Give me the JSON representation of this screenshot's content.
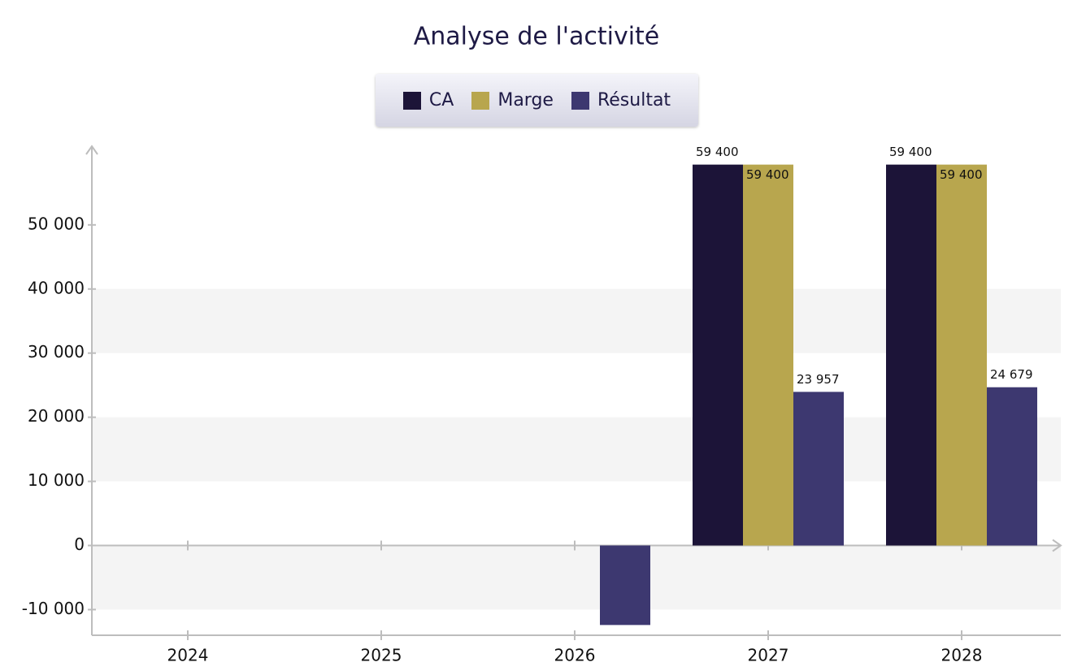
{
  "chart_data": {
    "type": "bar",
    "title": "Analyse de l'activité",
    "categories": [
      "2024",
      "2025",
      "2026",
      "2027",
      "2028"
    ],
    "series": [
      {
        "name": "CA",
        "color": "#1c1438",
        "values": [
          0,
          0,
          0,
          59400,
          59400
        ],
        "value_labels": [
          null,
          null,
          null,
          "59 400",
          "59 400"
        ]
      },
      {
        "name": "Marge",
        "color": "#b8a64e",
        "values": [
          0,
          0,
          0,
          59400,
          59400
        ],
        "value_labels": [
          null,
          null,
          null,
          "59 400",
          "59 400"
        ]
      },
      {
        "name": "Résultat",
        "color": "#3d3870",
        "values": [
          0,
          0,
          -12400,
          23957,
          24679
        ],
        "value_labels": [
          null,
          null,
          null,
          "23 957",
          "24 679"
        ]
      }
    ],
    "ylim": [
      -14000,
      61000
    ],
    "yticks": [
      {
        "value": -10000,
        "label": "-10 000"
      },
      0,
      {
        "value": 10000,
        "label": "10 000"
      },
      {
        "value": 20000,
        "label": "20 000"
      },
      {
        "value": 30000,
        "label": "30 000"
      },
      {
        "value": 40000,
        "label": "40 000"
      },
      {
        "value": 50000,
        "label": "50 000"
      }
    ],
    "grid": "bands",
    "legend": "top"
  }
}
